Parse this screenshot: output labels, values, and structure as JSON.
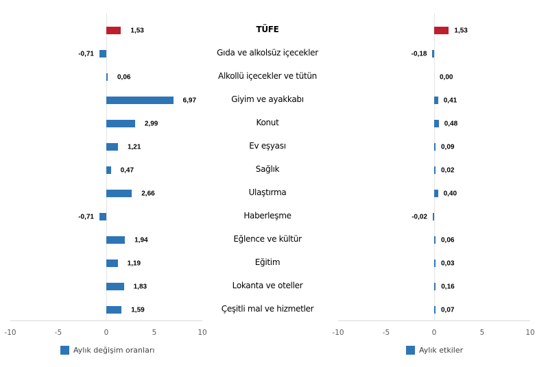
{
  "colors": {
    "tufe": "#BE1E2D",
    "group": "#2E75B6"
  },
  "chart_data": [
    {
      "type": "bar",
      "orientation": "horizontal",
      "title": "",
      "legend": [
        "Aylık değişim oranları"
      ],
      "legend_position": "bottom",
      "xlim": [
        -10,
        10
      ],
      "xticks": [
        "-10",
        "-5",
        "0",
        "5",
        "10"
      ],
      "categories": [
        "TÜFE",
        "Gıda ve alkolsüz içecekler",
        "Alkollü içecekler ve tütün",
        "Giyim ve ayakkabı",
        "Konut",
        "Ev eşyası",
        "Sağlık",
        "Ulaştırma",
        "Haberleşme",
        "Eğlence ve kültür",
        "Eğitim",
        "Lokanta ve oteller",
        "Çeşitli mal ve hizmetler"
      ],
      "series": [
        {
          "name": "Aylık değişim oranları",
          "values": [
            1.53,
            -0.71,
            0.06,
            6.97,
            2.99,
            1.21,
            0.47,
            2.66,
            -0.71,
            1.94,
            1.19,
            1.83,
            1.59
          ]
        }
      ],
      "labels": [
        "1,53",
        "-0,71",
        "0,06",
        "6,97",
        "2,99",
        "1,21",
        "0,47",
        "2,66",
        "-0,71",
        "1,94",
        "1,19",
        "1,83",
        "1,59"
      ]
    },
    {
      "type": "bar",
      "orientation": "horizontal",
      "title": "",
      "legend": [
        "Aylık etkiler"
      ],
      "legend_position": "bottom",
      "xlim": [
        -10,
        10
      ],
      "xticks": [
        "-10",
        "-5",
        "0",
        "5",
        "10"
      ],
      "categories": [
        "TÜFE",
        "Gıda ve alkolsüz içecekler",
        "Alkollü içecekler ve tütün",
        "Giyim ve ayakkabı",
        "Konut",
        "Ev eşyası",
        "Sağlık",
        "Ulaştırma",
        "Haberleşme",
        "Eğlence ve kültür",
        "Eğitim",
        "Lokanta ve oteller",
        "Çeşitli mal ve hizmetler"
      ],
      "series": [
        {
          "name": "Aylık etkiler",
          "values": [
            1.53,
            -0.18,
            0.0,
            0.41,
            0.48,
            0.09,
            0.02,
            0.4,
            -0.02,
            0.06,
            0.03,
            0.16,
            0.07
          ]
        }
      ],
      "labels": [
        "1,53",
        "-0,18",
        "0,00",
        "0,41",
        "0,48",
        "0,09",
        "0,02",
        "0,40",
        "-0,02",
        "0,06",
        "0,03",
        "0,16",
        "0,07"
      ]
    }
  ]
}
